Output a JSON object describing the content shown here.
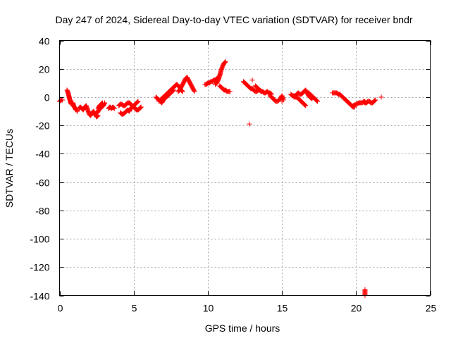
{
  "chart_data": {
    "type": "scatter",
    "title": "Day 247 of 2024, Sidereal Day-to-day VTEC variation (SDTVAR) for receiver bndr",
    "xlabel": "GPS time / hours",
    "ylabel": "SDTVAR / TECUs",
    "xlim": [
      0,
      25
    ],
    "ylim": [
      -140,
      40
    ],
    "xticks": [
      0,
      5,
      10,
      15,
      20,
      25
    ],
    "yticks": [
      40,
      20,
      0,
      -20,
      -40,
      -60,
      -80,
      -100,
      -120,
      -140
    ],
    "xtick_labels": [
      "0",
      "5",
      "10",
      "15",
      "20",
      "25"
    ],
    "ytick_labels": [
      "40",
      "20",
      "0",
      "-20",
      "-40",
      "-60",
      "-80",
      "-100",
      "-120",
      "-140"
    ],
    "grid": true,
    "marker": "plus",
    "color": "#ff0000",
    "series": [
      {
        "name": "SDTVAR",
        "segments": [
          [
            [
              0.0,
              -3
            ],
            [
              0.1,
              -2
            ],
            [
              0.2,
              -2
            ]
          ],
          [
            [
              0.5,
              5
            ],
            [
              0.55,
              4
            ],
            [
              0.6,
              2
            ],
            [
              0.65,
              0
            ],
            [
              0.7,
              -2
            ],
            [
              0.75,
              -4
            ],
            [
              0.8,
              -5
            ],
            [
              0.85,
              -5
            ],
            [
              0.9,
              -4
            ],
            [
              0.95,
              -6
            ],
            [
              1.0,
              -7
            ],
            [
              1.05,
              -8
            ],
            [
              1.1,
              -9
            ],
            [
              1.15,
              -9
            ],
            [
              1.2,
              -10
            ]
          ],
          [
            [
              1.3,
              -8
            ],
            [
              1.4,
              -7
            ],
            [
              1.5,
              -8
            ],
            [
              1.6,
              -9
            ],
            [
              1.7,
              -7
            ],
            [
              1.8,
              -6
            ],
            [
              1.9,
              -9
            ],
            [
              2.0,
              -12
            ],
            [
              2.1,
              -13
            ],
            [
              2.2,
              -11
            ],
            [
              2.3,
              -10
            ],
            [
              2.4,
              -12
            ],
            [
              2.5,
              -14
            ],
            [
              2.6,
              -13
            ]
          ],
          [
            [
              2.55,
              -11
            ],
            [
              2.65,
              -9
            ],
            [
              2.75,
              -8
            ],
            [
              2.85,
              -7
            ],
            [
              2.95,
              -6
            ],
            [
              3.05,
              -4
            ]
          ],
          [
            [
              2.6,
              -8
            ],
            [
              2.7,
              -6
            ],
            [
              2.8,
              -5
            ],
            [
              2.9,
              -4
            ]
          ],
          [
            [
              3.3,
              -8
            ],
            [
              3.4,
              -7
            ],
            [
              3.5,
              -8
            ],
            [
              3.6,
              -7
            ],
            [
              3.7,
              -8
            ]
          ],
          [
            [
              4.1,
              -11
            ],
            [
              4.2,
              -12
            ],
            [
              4.3,
              -12
            ],
            [
              4.4,
              -11
            ],
            [
              4.5,
              -10
            ],
            [
              4.6,
              -9
            ],
            [
              4.7,
              -10
            ],
            [
              4.8,
              -8
            ],
            [
              4.9,
              -7
            ],
            [
              5.0,
              -6
            ],
            [
              5.1,
              -5
            ],
            [
              5.2,
              -4
            ],
            [
              5.3,
              -3
            ]
          ],
          [
            [
              4.0,
              -6
            ],
            [
              4.1,
              -5
            ],
            [
              4.2,
              -5
            ],
            [
              4.3,
              -6
            ],
            [
              4.4,
              -6
            ],
            [
              4.5,
              -5
            ],
            [
              4.6,
              -4
            ],
            [
              4.7,
              -4
            ],
            [
              4.8,
              -5
            ],
            [
              4.9,
              -6
            ],
            [
              5.0,
              -7
            ],
            [
              5.1,
              -8
            ],
            [
              5.2,
              -9
            ],
            [
              5.3,
              -9
            ],
            [
              5.4,
              -8
            ],
            [
              5.5,
              -7
            ]
          ],
          [
            [
              6.5,
              0
            ],
            [
              6.6,
              -1
            ],
            [
              6.7,
              -2
            ],
            [
              6.8,
              -3
            ],
            [
              6.9,
              -4
            ],
            [
              7.0,
              -2
            ],
            [
              7.1,
              -1
            ],
            [
              7.2,
              0
            ],
            [
              7.3,
              1
            ],
            [
              7.4,
              2
            ],
            [
              7.5,
              3
            ],
            [
              7.6,
              4
            ],
            [
              7.7,
              5
            ]
          ],
          [
            [
              6.7,
              -3
            ],
            [
              6.8,
              -2
            ],
            [
              6.9,
              -1
            ],
            [
              7.0,
              0
            ],
            [
              7.1,
              1
            ],
            [
              7.2,
              2
            ],
            [
              7.3,
              3
            ],
            [
              7.4,
              4
            ],
            [
              7.5,
              5
            ],
            [
              7.6,
              6
            ],
            [
              7.7,
              7
            ],
            [
              7.8,
              8
            ],
            [
              7.9,
              9
            ],
            [
              8.0,
              8
            ],
            [
              8.1,
              7
            ],
            [
              8.2,
              5
            ],
            [
              8.3,
              4
            ]
          ],
          [
            [
              8.0,
              4
            ],
            [
              8.1,
              5
            ],
            [
              8.2,
              7
            ],
            [
              8.3,
              9
            ],
            [
              8.4,
              11
            ],
            [
              8.5,
              13
            ],
            [
              8.6,
              14
            ],
            [
              8.7,
              12
            ],
            [
              8.8,
              10
            ],
            [
              8.9,
              8
            ],
            [
              9.0,
              6
            ],
            [
              9.1,
              4
            ]
          ],
          [
            [
              9.8,
              9
            ],
            [
              9.9,
              9
            ],
            [
              10.0,
              10
            ],
            [
              10.1,
              10
            ],
            [
              10.2,
              11
            ],
            [
              10.3,
              11
            ],
            [
              10.4,
              12
            ],
            [
              10.5,
              12
            ],
            [
              10.6,
              13
            ],
            [
              10.7,
              14
            ]
          ],
          [
            [
              10.5,
              9
            ],
            [
              10.6,
              10
            ],
            [
              10.7,
              12
            ],
            [
              10.8,
              15
            ],
            [
              10.9,
              19
            ],
            [
              11.0,
              22
            ],
            [
              11.1,
              24
            ],
            [
              11.2,
              25
            ]
          ],
          [
            [
              10.8,
              8
            ],
            [
              10.9,
              7
            ],
            [
              11.0,
              6
            ],
            [
              11.1,
              5
            ],
            [
              11.2,
              5
            ],
            [
              11.3,
              4
            ],
            [
              11.4,
              4
            ],
            [
              11.5,
              4
            ]
          ],
          [
            [
              12.4,
              11
            ],
            [
              12.5,
              10
            ],
            [
              12.6,
              9
            ],
            [
              12.7,
              8
            ],
            [
              12.8,
              7
            ],
            [
              12.9,
              6
            ],
            [
              13.0,
              6
            ],
            [
              13.1,
              5
            ],
            [
              13.2,
              4
            ],
            [
              13.3,
              4
            ],
            [
              13.4,
              5
            ],
            [
              13.5,
              5
            ],
            [
              13.6,
              4
            ]
          ],
          [
            [
              12.8,
              -19
            ]
          ],
          [
            [
              13.0,
              12
            ]
          ],
          [
            [
              13.2,
              8
            ],
            [
              13.3,
              7
            ],
            [
              13.4,
              6
            ],
            [
              13.5,
              5
            ],
            [
              13.6,
              4
            ],
            [
              13.7,
              4
            ],
            [
              13.8,
              3
            ],
            [
              13.9,
              3
            ],
            [
              14.0,
              4
            ],
            [
              14.1,
              3
            ],
            [
              14.2,
              3
            ],
            [
              14.3,
              2
            ]
          ],
          [
            [
              14.2,
              1
            ],
            [
              14.3,
              0
            ],
            [
              14.4,
              -1
            ],
            [
              14.5,
              -2
            ],
            [
              14.6,
              -3
            ],
            [
              14.7,
              -3
            ],
            [
              14.8,
              -2
            ],
            [
              14.9,
              -1
            ],
            [
              15.0,
              1
            ],
            [
              15.1,
              -2
            ]
          ],
          [
            [
              15.0,
              -3
            ]
          ],
          [
            [
              15.6,
              2
            ],
            [
              15.7,
              1
            ],
            [
              15.8,
              1
            ],
            [
              15.9,
              0
            ],
            [
              16.0,
              0
            ],
            [
              16.1,
              -1
            ],
            [
              16.2,
              -2
            ],
            [
              16.3,
              -3
            ],
            [
              16.4,
              -4
            ],
            [
              16.5,
              -5
            ],
            [
              16.6,
              -6
            ]
          ],
          [
            [
              15.8,
              0
            ],
            [
              15.9,
              1
            ],
            [
              16.0,
              2
            ],
            [
              16.1,
              3
            ],
            [
              16.2,
              2
            ],
            [
              16.3,
              2
            ],
            [
              16.4,
              3
            ],
            [
              16.5,
              4
            ],
            [
              16.6,
              5
            ],
            [
              16.7,
              3
            ],
            [
              16.8,
              1
            ],
            [
              16.9,
              0
            ],
            [
              17.0,
              -1
            ],
            [
              17.1,
              0
            ]
          ],
          [
            [
              16.8,
              3
            ],
            [
              16.9,
              2
            ],
            [
              17.0,
              1
            ],
            [
              17.1,
              0
            ],
            [
              17.2,
              -1
            ],
            [
              17.3,
              -2
            ],
            [
              17.4,
              -3
            ]
          ],
          [
            [
              18.4,
              3
            ],
            [
              18.5,
              3
            ],
            [
              18.6,
              3
            ],
            [
              18.7,
              3
            ],
            [
              18.8,
              2
            ],
            [
              18.9,
              2
            ],
            [
              19.0,
              1
            ],
            [
              19.1,
              0
            ],
            [
              19.2,
              -1
            ],
            [
              19.3,
              -2
            ],
            [
              19.4,
              -3
            ],
            [
              19.5,
              -4
            ],
            [
              19.6,
              -5
            ],
            [
              19.7,
              -6
            ],
            [
              19.8,
              -7
            ],
            [
              19.9,
              -7
            ]
          ],
          [
            [
              19.8,
              -6
            ],
            [
              20.0,
              -5
            ],
            [
              20.2,
              -4
            ],
            [
              20.4,
              -4
            ],
            [
              20.6,
              -3
            ]
          ],
          [
            [
              20.5,
              -3
            ],
            [
              20.6,
              -4
            ],
            [
              20.7,
              -4
            ],
            [
              20.8,
              -3
            ],
            [
              20.9,
              -3
            ],
            [
              21.0,
              -4
            ],
            [
              21.1,
              -4
            ],
            [
              21.2,
              -3
            ],
            [
              21.3,
              -2
            ]
          ],
          [
            [
              21.7,
              0
            ]
          ],
          [
            [
              20.6,
              -136
            ],
            [
              20.6,
              -140
            ]
          ]
        ]
      }
    ]
  }
}
